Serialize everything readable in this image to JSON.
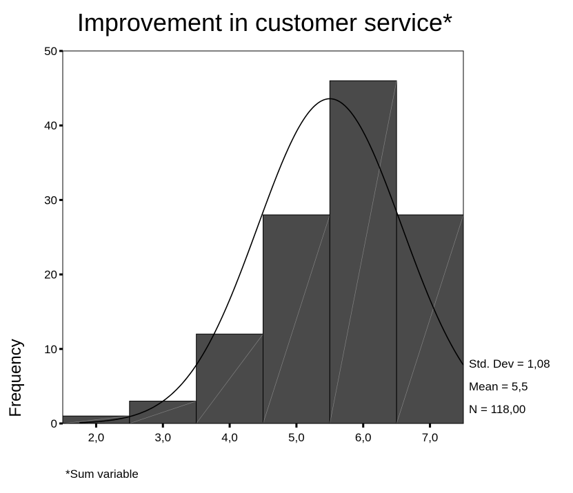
{
  "chart_data": {
    "type": "bar",
    "title": "Improvement in customer service*",
    "ylabel": "Frequency",
    "xlabel": "",
    "footnote": "*Sum variable",
    "categories": [
      "2,0",
      "3,0",
      "4,0",
      "5,0",
      "6,0",
      "7,0"
    ],
    "x": [
      2.0,
      3.0,
      4.0,
      5.0,
      6.0,
      7.0
    ],
    "values": [
      1,
      3,
      12,
      28,
      46,
      28
    ],
    "bin_width": 1.0,
    "xlim": [
      1.5,
      7.5
    ],
    "ylim": [
      0,
      50
    ],
    "yticks": [
      0,
      10,
      20,
      30,
      40,
      50
    ],
    "grid": false,
    "normal_curve": true,
    "stats": {
      "std_dev_label": "Std. Dev = 1,08",
      "mean_label": "Mean = 5,5",
      "n_label": "N = 118,00",
      "std_dev": 1.08,
      "mean": 5.5,
      "n": 118
    },
    "colors": {
      "bar": "#4a4a4a",
      "bar_edge": "#000000",
      "curve": "#000000"
    }
  }
}
